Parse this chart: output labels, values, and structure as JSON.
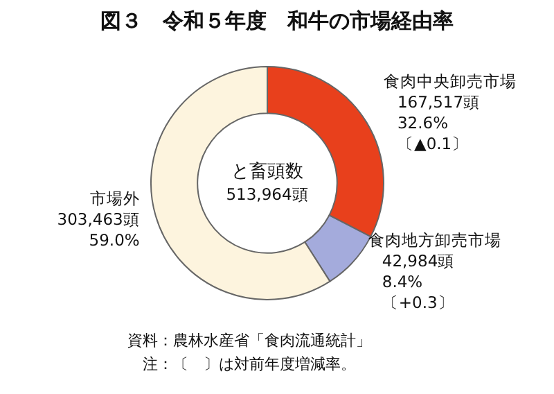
{
  "chart_data": {
    "type": "donut",
    "title": "図３　令和５年度　和牛の市場経由率",
    "categories": [
      "食肉中央卸売市場",
      "食肉地方卸売市場",
      "市場外"
    ],
    "values": [
      167517,
      42984,
      303463
    ],
    "colors": [
      "#e8401c",
      "#a4abdc",
      "#fdf4de"
    ],
    "value_labels": [
      "167,517頭\n32.6%\n〔▲0.1〕",
      "42,984頭\n8.4%\n〔+0.3〕",
      "303,463頭\n59.0%"
    ],
    "annotations": [
      "と畜頭数",
      "513,964頭",
      "資料：農林水産省「食肉流通統計」",
      "注：〔　〕は対前年度増減率。"
    ]
  }
}
